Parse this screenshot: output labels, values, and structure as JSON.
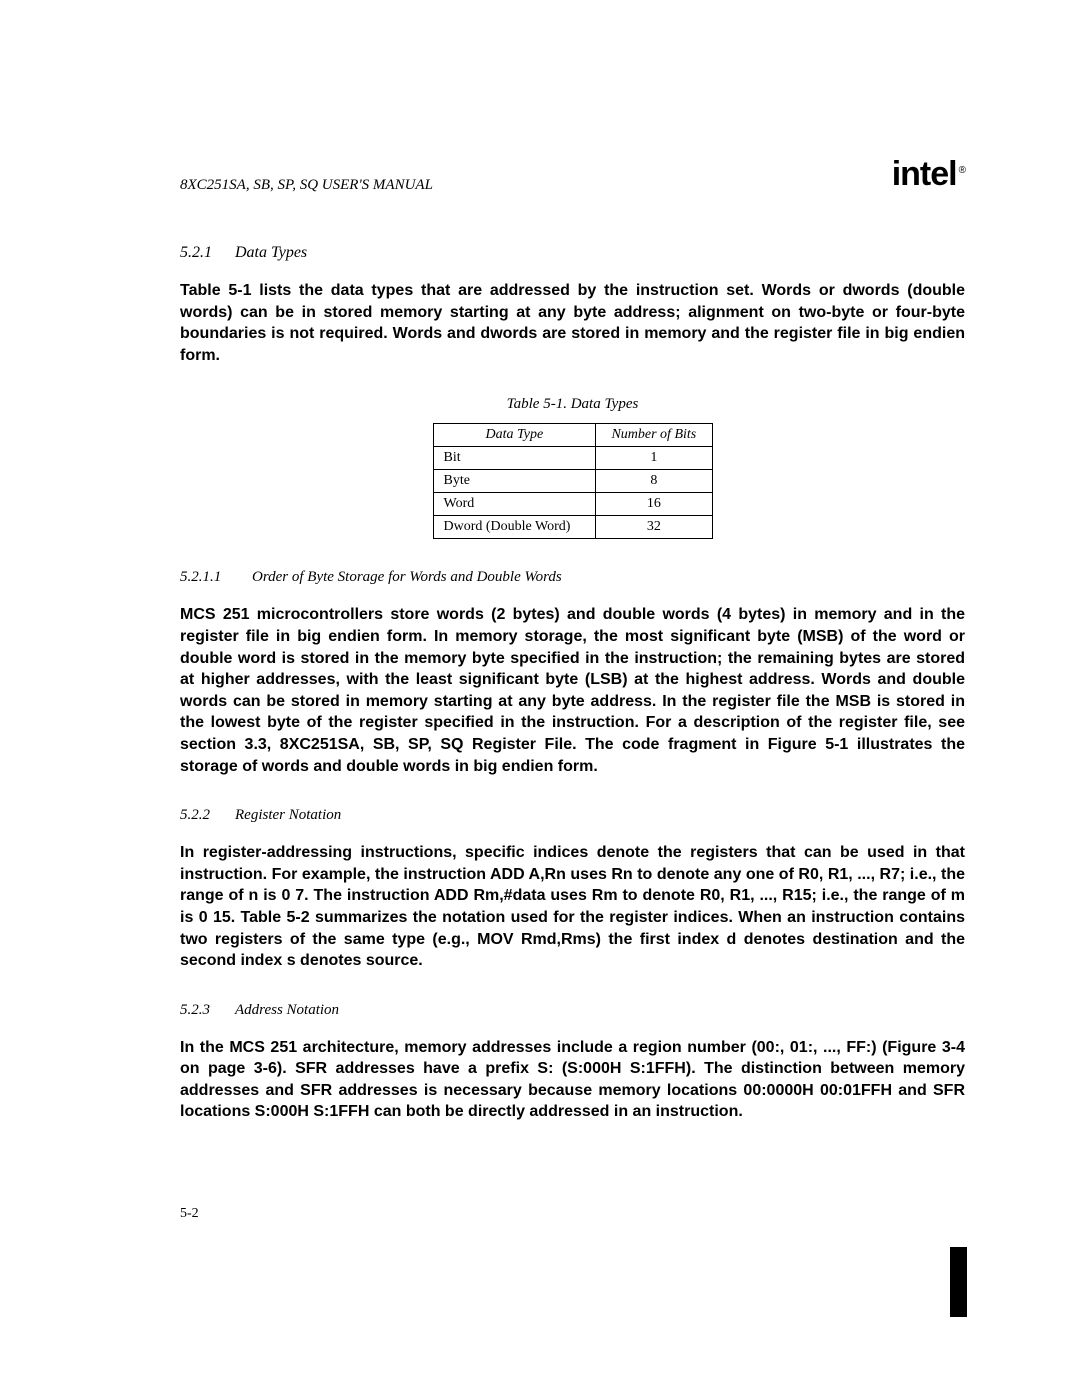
{
  "header": {
    "manual_title": "8XC251SA, SB, SP, SQ USER'S MANUAL",
    "logo_text": "intel",
    "logo_mark": "®"
  },
  "s521": {
    "num": "5.2.1",
    "title": "Data Types",
    "p1": "Table 5-1 lists the data types that are addressed by the instruction set. Words or dwords (double words) can be in stored memory starting at any byte address; alignment on two-byte or four-byte boundaries is not required. Words and dwords are stored in memory and the register file in big endien form."
  },
  "table": {
    "caption": "Table 5-1.  Data Types",
    "h1": "Data Type",
    "h2": "Number of Bits",
    "r0c0": "Bit",
    "r0c1": "1",
    "r1c0": "Byte",
    "r1c1": "8",
    "r2c0": "Word",
    "r2c1": "16",
    "r3c0": "Dword (Double Word)",
    "r3c1": "32"
  },
  "s5211": {
    "num": "5.2.1.1",
    "title": "Order of Byte Storage for Words and Double Words",
    "p1": "MCS 251 microcontrollers store words (2 bytes) and double words (4 bytes) in memory and in the register file in big endien form. In memory storage, the most significant byte (MSB) of the word or double word is stored in the memory byte specified in the instruction; the remaining bytes are stored at higher addresses, with the least significant byte (LSB) at the highest address. Words and double words can be stored in memory starting at any byte address. In the register file the MSB is stored in the lowest byte of the register specified in the instruction. For a description of the register file, see section 3.3,  8XC251SA, SB, SP, SQ Register File.  The code fragment in Figure 5-1 illustrates the storage of words and double words in big endien form."
  },
  "s522": {
    "num": "5.2.2",
    "title": "Register Notation",
    "p1": "In register-addressing instructions, specific indices denote the registers that can be used in that instruction. For example, the instruction ADD A,Rn uses  Rn  to denote any one of R0, R1, ..., R7; i.e., the range of n is 0 7. The instruction ADD Rm,#data uses  Rm  to denote R0, R1, ..., R15; i.e., the range of m is 0 15. Table 5-2 summarizes the notation used for the register indices. When an instruction contains two registers of the same type (e.g., MOV Rmd,Rms) the first index  d  denotes  destination  and the second index  s  denotes  source."
  },
  "s523": {
    "num": "5.2.3",
    "title": "Address Notation",
    "p1": "In the MCS 251 architecture, memory addresses include a region number (00:, 01:, ..., FF:) (Figure 3-4 on page 3-6). SFR addresses have a prefix  S:  (S:000H S:1FFH). The distinction between memory addresses and SFR addresses is necessary because memory locations 00:0000H 00:01FFH and SFR locations S:000H S:1FFH can both be directly addressed in an instruction."
  },
  "page": {
    "number": "5-2"
  }
}
